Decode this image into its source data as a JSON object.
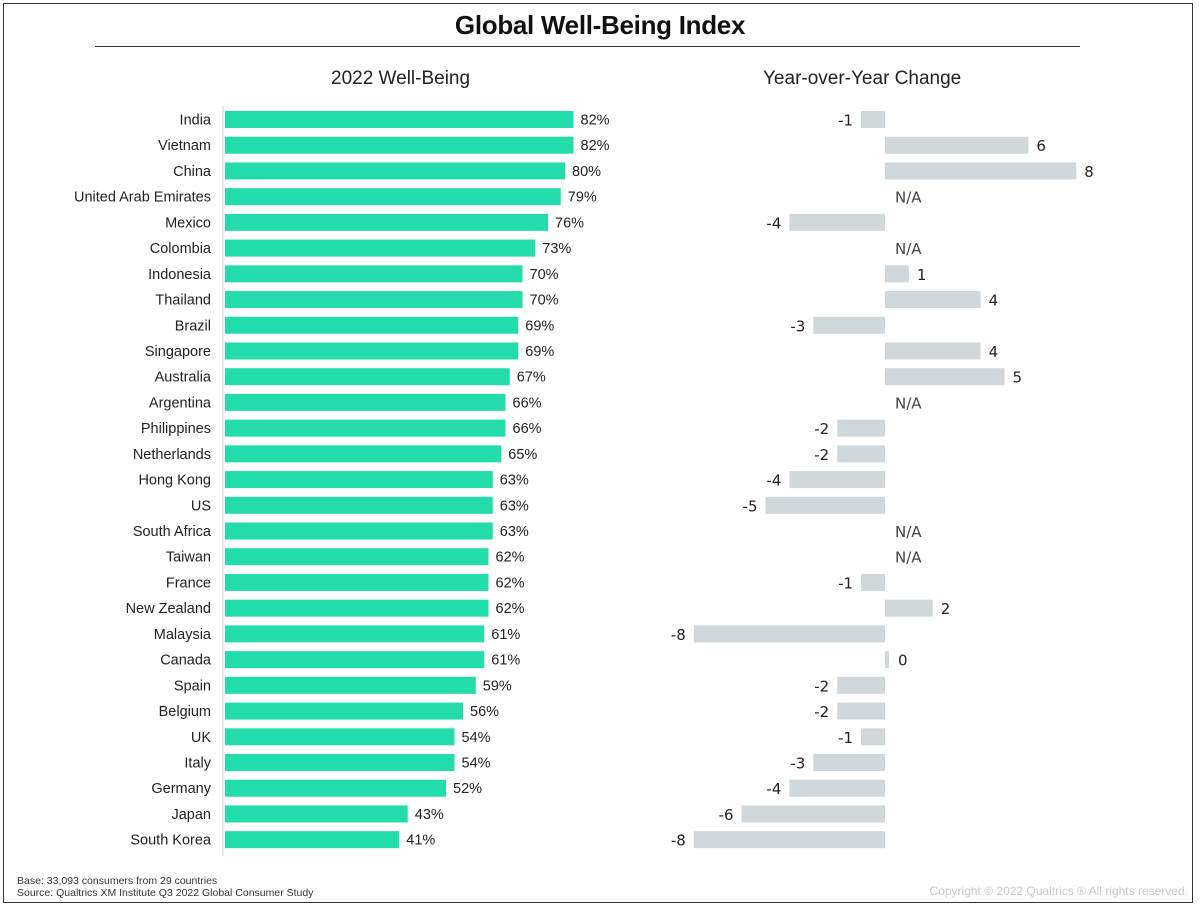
{
  "title": "Global Well-Being Index",
  "left_subtitle": "2022 Well-Being",
  "right_subtitle": "Year-over-Year Change",
  "footer": {
    "base": "Base: 33,093 consumers from 29 countries",
    "source": "Source: Qualtrics XM Institute Q3 2022 Global Consumer Study",
    "copyright": "Copyright © 2022 Qualtrics ® All rights reserved."
  },
  "colors": {
    "wellbeing_bar": "#22DDAA",
    "change_bar": "#D0D7DA",
    "axis": "#DDDDDD"
  },
  "chart_data": [
    {
      "type": "bar",
      "orientation": "horizontal",
      "title": "2022 Well-Being",
      "categories": [
        "India",
        "Vietnam",
        "China",
        "United Arab Emirates",
        "Mexico",
        "Colombia",
        "Indonesia",
        "Thailand",
        "Brazil",
        "Singapore",
        "Australia",
        "Argentina",
        "Philippines",
        "Netherlands",
        "Hong Kong",
        "US",
        "South Africa",
        "Taiwan",
        "France",
        "New Zealand",
        "Malaysia",
        "Canada",
        "Spain",
        "Belgium",
        "UK",
        "Italy",
        "Germany",
        "Japan",
        "South Korea"
      ],
      "values": [
        82,
        82,
        80,
        79,
        76,
        73,
        70,
        70,
        69,
        69,
        67,
        66,
        66,
        65,
        63,
        63,
        63,
        62,
        62,
        62,
        61,
        61,
        59,
        56,
        54,
        54,
        52,
        43,
        41
      ],
      "value_suffix": "%",
      "xlim": [
        0,
        100
      ],
      "grid": false
    },
    {
      "type": "bar",
      "orientation": "horizontal",
      "title": "Year-over-Year Change",
      "categories": [
        "India",
        "Vietnam",
        "China",
        "United Arab Emirates",
        "Mexico",
        "Colombia",
        "Indonesia",
        "Thailand",
        "Brazil",
        "Singapore",
        "Australia",
        "Argentina",
        "Philippines",
        "Netherlands",
        "Hong Kong",
        "US",
        "South Africa",
        "Taiwan",
        "France",
        "New Zealand",
        "Malaysia",
        "Canada",
        "Spain",
        "Belgium",
        "UK",
        "Italy",
        "Germany",
        "Japan",
        "South Korea"
      ],
      "values": [
        -1,
        6,
        8,
        null,
        -4,
        null,
        1,
        4,
        -3,
        4,
        5,
        null,
        -2,
        -2,
        -4,
        -5,
        null,
        null,
        -1,
        2,
        -8,
        0,
        -2,
        -2,
        -1,
        -3,
        -4,
        -6,
        -8
      ],
      "missing_label": "N/A",
      "xlim": [
        -9,
        9
      ],
      "grid": false
    }
  ]
}
